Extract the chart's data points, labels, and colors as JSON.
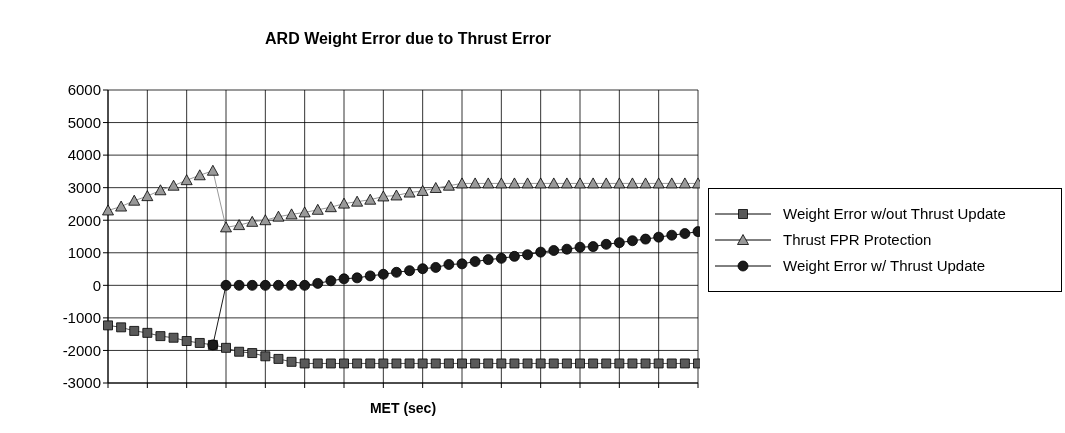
{
  "chart_data": {
    "type": "line",
    "title": "ARD Weight Error due to Thrust Error",
    "xlabel": "MET (sec)",
    "categories": [
      null,
      null,
      null,
      null,
      null,
      null,
      null,
      null,
      null,
      null,
      null,
      null,
      null,
      null,
      null,
      null,
      null,
      null,
      null,
      null,
      null,
      null,
      null,
      null,
      null,
      null,
      null,
      null,
      null,
      null,
      null,
      null,
      null,
      null,
      null,
      null,
      null,
      null,
      null,
      null,
      null,
      null,
      null,
      null,
      null,
      null
    ],
    "series": [
      {
        "name": "Weight Error w/out Thrust Update",
        "color": "#595959",
        "marker": "square",
        "values": [
          -1230,
          -1290,
          -1400,
          -1460,
          -1560,
          -1610,
          -1710,
          -1770,
          -1830,
          -1920,
          -2040,
          -2080,
          -2180,
          -2260,
          -2350,
          -2400,
          -2400,
          -2400,
          -2400,
          -2400,
          -2400,
          -2400,
          -2400,
          -2400,
          -2400,
          -2400,
          -2400,
          -2400,
          -2400,
          -2400,
          -2400,
          -2400,
          -2400,
          -2400,
          -2400,
          -2400,
          -2400,
          -2400,
          -2400,
          -2400,
          -2400,
          -2400,
          -2400,
          -2400,
          -2400,
          -2400
        ]
      },
      {
        "name": "Thrust FPR Protection",
        "color": "#999999",
        "marker": "triangle",
        "values": [
          2300,
          2420,
          2600,
          2740,
          2920,
          3060,
          3230,
          3380,
          3520,
          1780,
          1850,
          1950,
          2000,
          2110,
          2180,
          2240,
          2320,
          2400,
          2510,
          2570,
          2630,
          2730,
          2760,
          2850,
          2900,
          2990,
          3060,
          3130,
          3130,
          3130,
          3130,
          3130,
          3130,
          3130,
          3130,
          3130,
          3130,
          3130,
          3130,
          3130,
          3130,
          3130,
          3130,
          3130,
          3130,
          3130
        ]
      },
      {
        "name": "Weight Error w/ Thrust Update",
        "color": "#1a1a1a",
        "marker": "circle",
        "values": [
          null,
          null,
          null,
          null,
          null,
          null,
          null,
          null,
          -1830,
          0,
          0,
          0,
          0,
          0,
          0,
          0,
          60,
          140,
          200,
          230,
          290,
          340,
          400,
          450,
          510,
          550,
          640,
          660,
          730,
          790,
          830,
          890,
          940,
          1020,
          1070,
          1110,
          1170,
          1190,
          1260,
          1310,
          1370,
          1420,
          1480,
          1540,
          1590,
          1650
        ]
      }
    ],
    "ylim": [
      -3000,
      6000
    ],
    "yticks": [
      -3000,
      -2000,
      -1000,
      0,
      1000,
      2000,
      3000,
      4000,
      5000,
      6000
    ],
    "grid": true,
    "legend": "right",
    "line_style": "solid"
  }
}
